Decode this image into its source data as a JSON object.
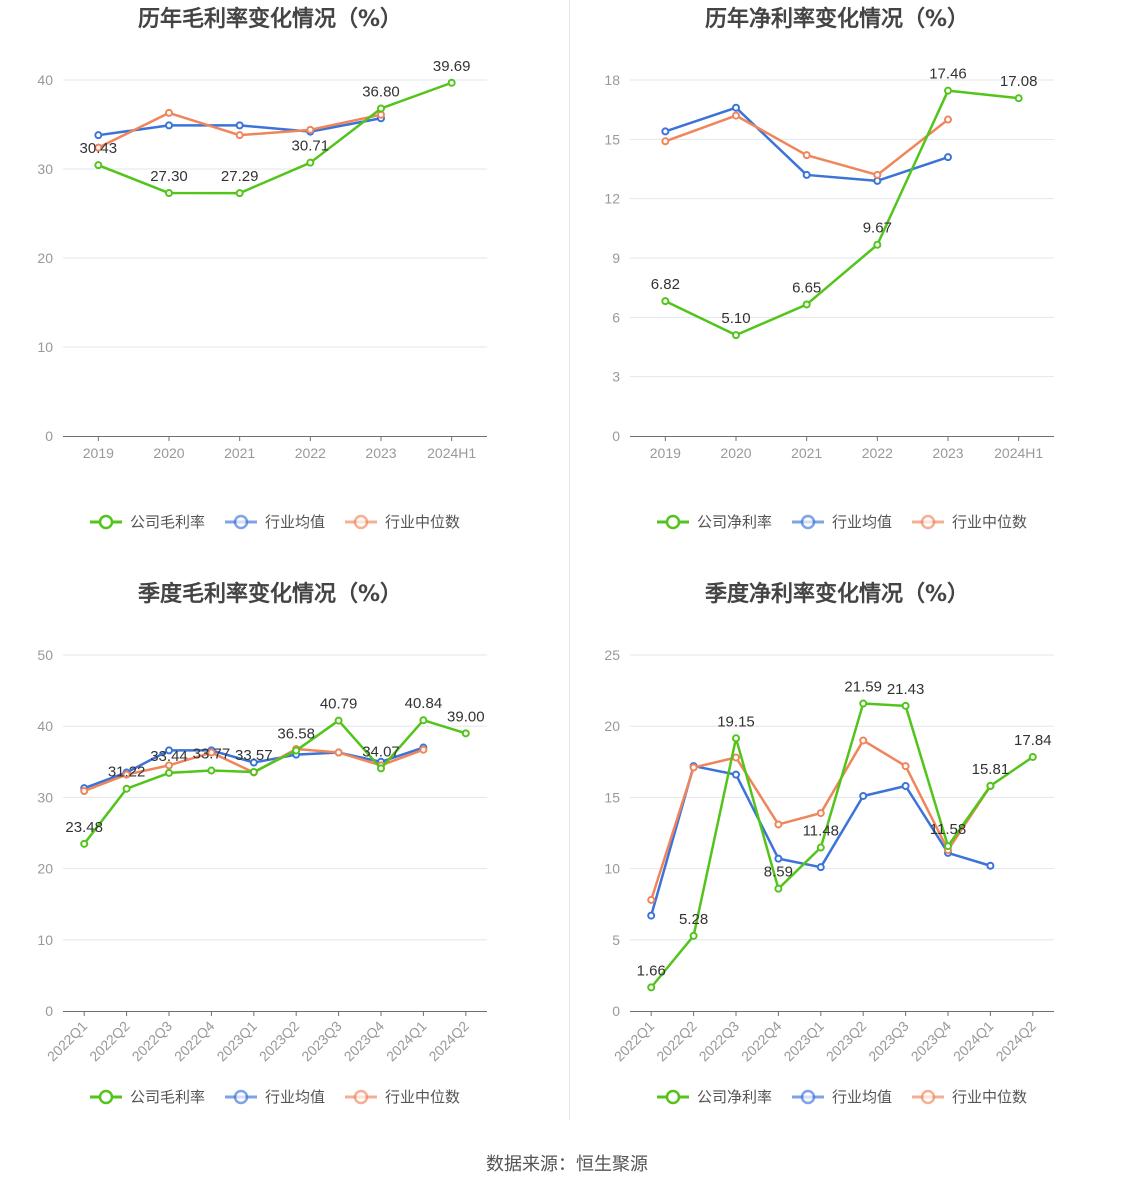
{
  "colors": {
    "company": "#52c41a",
    "avg": "#3b73d9",
    "median": "#f0855b",
    "grid": "#e3e6ee",
    "axis": "#6e7079",
    "tick_text": "#999999",
    "label_text": "#333333",
    "title_text": "#444444"
  },
  "source": "数据来源：恒生聚源",
  "chart_data": [
    {
      "type": "line",
      "title": "历年毛利率变化情况（%）",
      "categories": [
        "2019",
        "2020",
        "2021",
        "2022",
        "2023",
        "2024H1"
      ],
      "ylim": [
        0,
        40
      ],
      "yticks": [
        0,
        10,
        20,
        30,
        40
      ],
      "grid": true,
      "legend_position": "bottom",
      "rotate_x_labels": false,
      "series": [
        {
          "name": "公司毛利率",
          "role": "company",
          "values": [
            30.43,
            27.3,
            27.29,
            30.71,
            36.8,
            39.69
          ],
          "labels": [
            "30.43",
            "27.30",
            "27.29",
            "30.71",
            "36.80",
            "39.69"
          ]
        },
        {
          "name": "行业均值",
          "role": "avg",
          "values": [
            33.8,
            34.9,
            34.9,
            34.2,
            35.7,
            null
          ]
        },
        {
          "name": "行业中位数",
          "role": "median",
          "values": [
            32.4,
            36.3,
            33.8,
            34.4,
            36.1,
            null
          ]
        }
      ]
    },
    {
      "type": "line",
      "title": "历年净利率变化情况（%）",
      "categories": [
        "2019",
        "2020",
        "2021",
        "2022",
        "2023",
        "2024H1"
      ],
      "ylim": [
        0,
        18
      ],
      "yticks": [
        0,
        3,
        6,
        9,
        12,
        15,
        18
      ],
      "grid": true,
      "legend_position": "bottom",
      "rotate_x_labels": false,
      "series": [
        {
          "name": "公司净利率",
          "role": "company",
          "values": [
            6.82,
            5.1,
            6.65,
            9.67,
            17.46,
            17.08
          ],
          "labels": [
            "6.82",
            "5.10",
            "6.65",
            "9.67",
            "17.46",
            "17.08"
          ]
        },
        {
          "name": "行业均值",
          "role": "avg",
          "values": [
            15.4,
            16.6,
            13.2,
            12.9,
            14.1,
            null
          ]
        },
        {
          "name": "行业中位数",
          "role": "median",
          "values": [
            14.9,
            16.2,
            14.2,
            13.2,
            16.0,
            null
          ]
        }
      ]
    },
    {
      "type": "line",
      "title": "季度毛利率变化情况（%）",
      "categories": [
        "2022Q1",
        "2022Q2",
        "2022Q3",
        "2022Q4",
        "2023Q1",
        "2023Q2",
        "2023Q3",
        "2023Q4",
        "2024Q1",
        "2024Q2"
      ],
      "ylim": [
        0,
        50
      ],
      "yticks": [
        0,
        10,
        20,
        30,
        40,
        50
      ],
      "grid": true,
      "legend_position": "bottom",
      "rotate_x_labels": true,
      "series": [
        {
          "name": "公司毛利率",
          "role": "company",
          "values": [
            23.48,
            31.22,
            33.44,
            33.77,
            33.57,
            36.58,
            40.79,
            34.07,
            40.84,
            39.0
          ],
          "labels": [
            "23.48",
            "31.22",
            "33.44",
            "33.77",
            "33.57",
            "36.58",
            "40.79",
            "34.07",
            "40.84",
            "39.00"
          ]
        },
        {
          "name": "行业均值",
          "role": "avg",
          "values": [
            31.3,
            33.5,
            36.6,
            36.6,
            34.9,
            36.0,
            36.3,
            35.0,
            37.0,
            null
          ]
        },
        {
          "name": "行业中位数",
          "role": "median",
          "values": [
            30.9,
            33.2,
            34.5,
            36.3,
            33.5,
            36.8,
            36.3,
            34.5,
            36.7,
            null
          ]
        }
      ]
    },
    {
      "type": "line",
      "title": "季度净利率变化情况（%）",
      "categories": [
        "2022Q1",
        "2022Q2",
        "2022Q3",
        "2022Q4",
        "2023Q1",
        "2023Q2",
        "2023Q3",
        "2023Q4",
        "2024Q1",
        "2024Q2"
      ],
      "ylim": [
        0,
        25
      ],
      "yticks": [
        0,
        5,
        10,
        15,
        20,
        25
      ],
      "grid": true,
      "legend_position": "bottom",
      "rotate_x_labels": true,
      "series": [
        {
          "name": "公司净利率",
          "role": "company",
          "values": [
            1.66,
            5.28,
            19.15,
            8.59,
            11.48,
            21.59,
            21.43,
            11.58,
            15.81,
            17.84
          ],
          "labels": [
            "1.66",
            "5.28",
            "19.15",
            "8.59",
            "11.48",
            "21.59",
            "21.43",
            "11.58",
            "15.81",
            "17.84"
          ]
        },
        {
          "name": "行业均值",
          "role": "avg",
          "values": [
            6.7,
            17.2,
            16.6,
            10.7,
            10.1,
            15.1,
            15.8,
            11.1,
            10.2,
            null
          ]
        },
        {
          "name": "行业中位数",
          "role": "median",
          "values": [
            7.8,
            17.1,
            17.8,
            13.1,
            13.9,
            19.0,
            17.2,
            11.3,
            15.8,
            null
          ]
        }
      ]
    }
  ]
}
